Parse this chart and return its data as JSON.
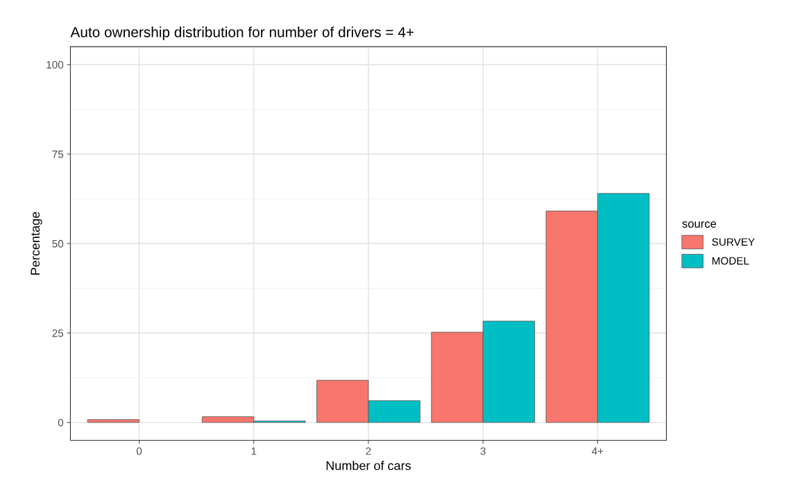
{
  "chart_data": {
    "type": "bar",
    "title": "Auto ownership distribution for number of drivers = 4+",
    "xlabel": "Number of cars",
    "ylabel": "Percentage",
    "legend_title": "source",
    "categories": [
      "0",
      "1",
      "2",
      "3",
      "4+"
    ],
    "series": [
      {
        "name": "SURVEY",
        "color": "#f8766d",
        "values": [
          0.8,
          1.6,
          11.8,
          25.2,
          59.1
        ]
      },
      {
        "name": "MODEL",
        "color": "#00bfc4",
        "values": [
          null,
          0.4,
          6.1,
          28.3,
          64.0
        ]
      }
    ],
    "ylim": [
      -5,
      105
    ],
    "yticks": [
      0,
      25,
      50,
      75,
      100
    ],
    "grid": true,
    "legend": "right"
  }
}
